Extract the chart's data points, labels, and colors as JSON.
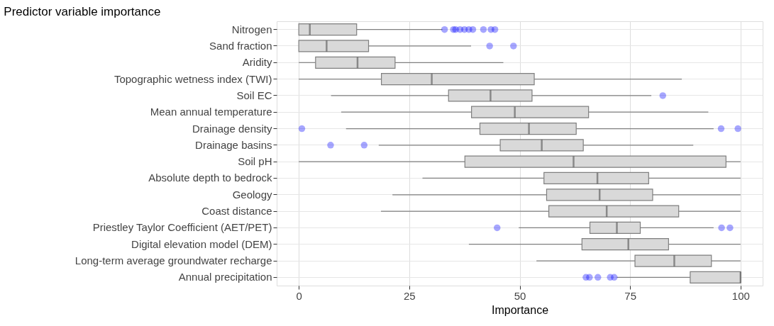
{
  "chart_data": {
    "type": "box",
    "title": "Predictor variable importance",
    "xlabel": "Importance",
    "orientation": "horizontal",
    "categories": [
      "Nitrogen",
      "Sand fraction",
      "Aridity",
      "Topographic wetness index (TWI)",
      "Soil EC",
      "Mean annual temperature",
      "Drainage density",
      "Drainage basins",
      "Soil pH",
      "Absolute depth to bedrock",
      "Geology",
      "Coast distance",
      "Priestley Taylor Coefficient (AET/PET)",
      "Digital elevation model (DEM)",
      "Long-term average groundwater recharge",
      "Annual precipitation"
    ],
    "series": [
      {
        "color": "#d9d9d9",
        "boxes": [
          {
            "low": 0,
            "q1": 0,
            "median": 2.5,
            "q3": 13.1,
            "high": 32.5,
            "outliers": [
              33.0,
              35.0,
              35.5,
              36.5,
              37.5,
              38.5,
              39.4,
              41.8,
              43.5,
              44.4
            ]
          },
          {
            "low": 0,
            "q1": 0,
            "median": 6.3,
            "q3": 15.8,
            "high": 39.0,
            "outliers": [
              43.2,
              48.6
            ]
          },
          {
            "low": 0,
            "q1": 3.8,
            "median": 13.3,
            "q3": 21.8,
            "high": 46.3
          },
          {
            "low": 0,
            "q1": 18.7,
            "median": 30.1,
            "q3": 53.3,
            "high": 86.7
          },
          {
            "low": 7.3,
            "q1": 33.9,
            "median": 43.4,
            "q3": 52.8,
            "high": 79.8,
            "outliers": [
              82.4
            ]
          },
          {
            "low": 9.6,
            "q1": 39.1,
            "median": 48.9,
            "q3": 65.6,
            "high": 92.7
          },
          {
            "low": 10.7,
            "q1": 41.0,
            "median": 52.1,
            "q3": 62.8,
            "high": 93.9,
            "outliers": [
              0.7,
              95.6,
              99.4
            ]
          },
          {
            "low": 18.1,
            "q1": 45.6,
            "median": 55.0,
            "q3": 64.4,
            "high": 89.3,
            "outliers": [
              7.2,
              14.8
            ]
          },
          {
            "low": 0,
            "q1": 37.6,
            "median": 62.2,
            "q3": 96.7,
            "high": 100
          },
          {
            "low": 28.0,
            "q1": 55.5,
            "median": 67.6,
            "q3": 79.2,
            "high": 100
          },
          {
            "low": 21.2,
            "q1": 56.1,
            "median": 68.1,
            "q3": 80.1,
            "high": 100
          },
          {
            "low": 18.6,
            "q1": 56.6,
            "median": 69.7,
            "q3": 86.0,
            "high": 100
          },
          {
            "low": 49.8,
            "q1": 65.9,
            "median": 72.0,
            "q3": 77.3,
            "high": 93.9,
            "outliers": [
              44.9,
              95.7,
              97.6
            ]
          },
          {
            "low": 38.5,
            "q1": 64.1,
            "median": 74.6,
            "q3": 83.7,
            "high": 100
          },
          {
            "low": 53.8,
            "q1": 76.1,
            "median": 85.0,
            "q3": 93.4,
            "high": 100
          },
          {
            "low": 72.0,
            "q1": 88.6,
            "median": 100,
            "q3": 100,
            "high": 100,
            "outliers": [
              65.0,
              65.8,
              67.7,
              70.5,
              71.4
            ]
          }
        ]
      }
    ],
    "xlim": [
      -5,
      105
    ],
    "xticks": [
      0,
      25,
      50,
      75,
      100
    ],
    "grid": true
  }
}
